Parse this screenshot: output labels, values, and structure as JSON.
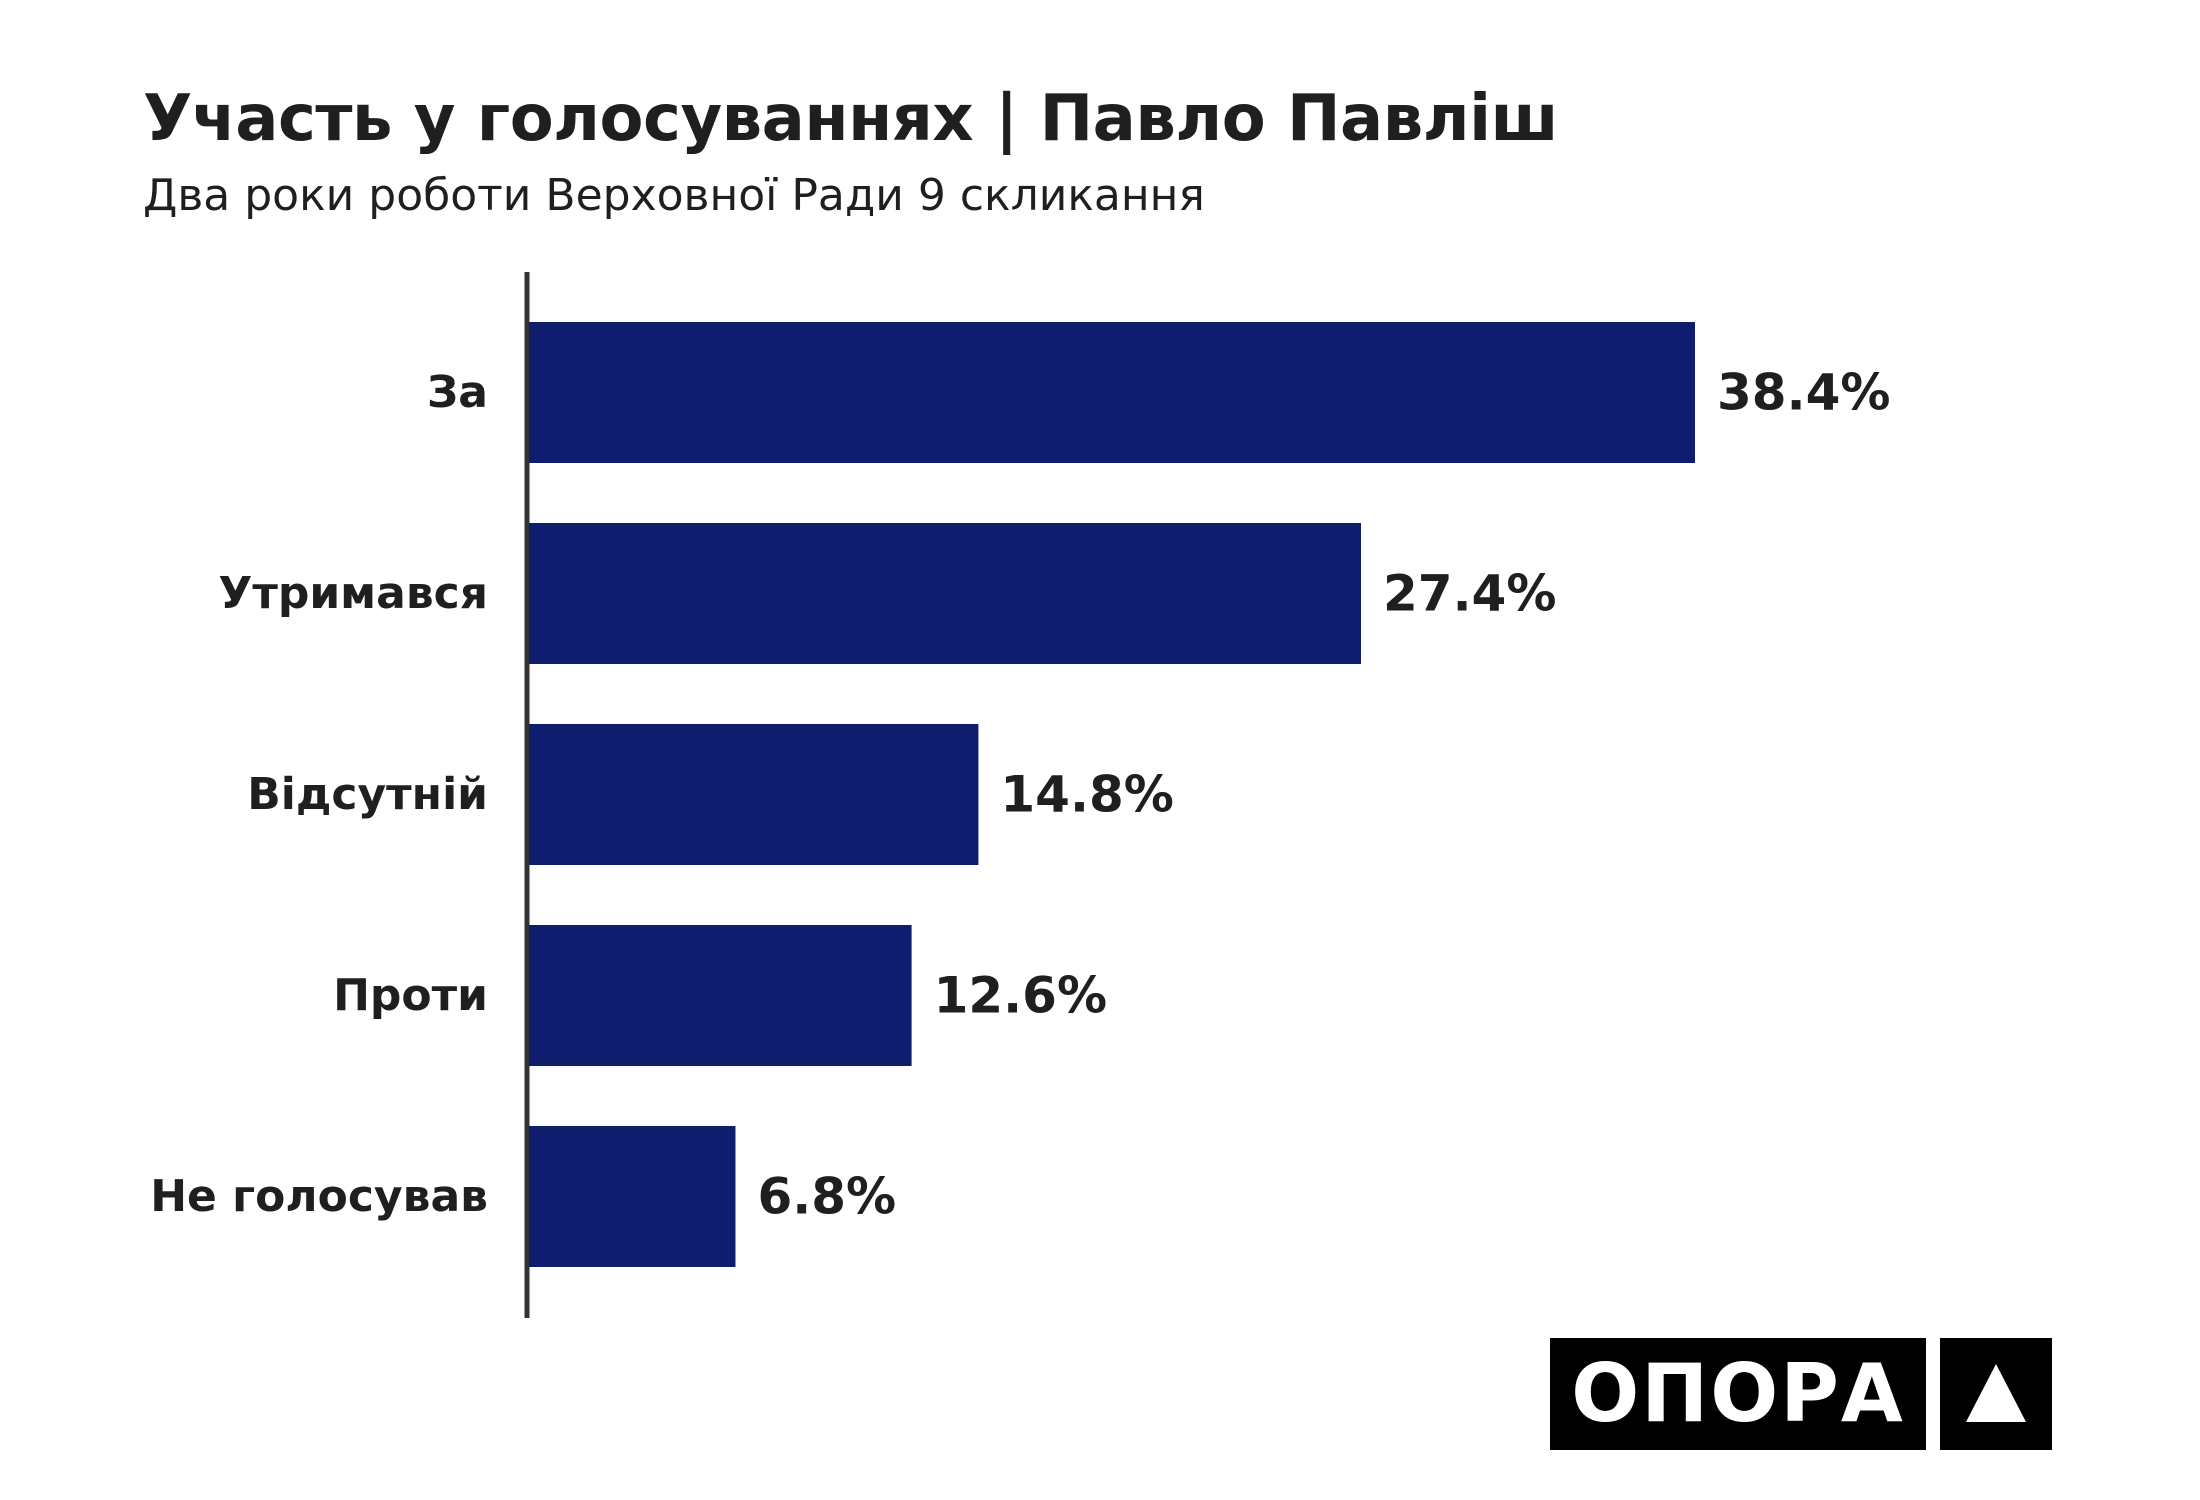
{
  "header": {
    "title": "Участь у голосуваннях | Павло Павліш",
    "subtitle": "Два роки роботи Верховної Ради 9 скликання"
  },
  "logo": {
    "text": "ОПОРА",
    "icon": "triangle-up-icon"
  },
  "colors": {
    "bar": "#0f1d6e",
    "axis": "#333333",
    "text": "#1f1f1f"
  },
  "chart_data": {
    "type": "bar",
    "orientation": "horizontal",
    "categories": [
      "За",
      "Утримався",
      "Відсутній",
      "Проти",
      "Не голосував"
    ],
    "values": [
      38.4,
      27.4,
      14.8,
      12.6,
      6.8
    ],
    "value_labels": [
      "38.4%",
      "27.4%",
      "14.8%",
      "12.6%",
      "6.8%"
    ],
    "xlim": [
      0,
      38.4
    ],
    "grid": false,
    "legend": "none"
  }
}
